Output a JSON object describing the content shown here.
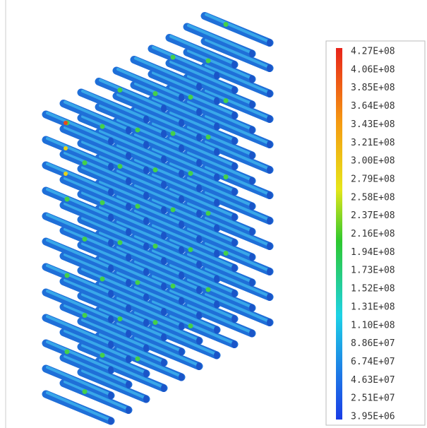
{
  "legend": {
    "labels": [
      "4.27E+08",
      "4.06E+08",
      "3.85E+08",
      "3.64E+08",
      "3.43E+08",
      "3.21E+08",
      "3.00E+08",
      "2.79E+08",
      "2.58E+08",
      "2.37E+08",
      "2.16E+08",
      "1.94E+08",
      "1.73E+08",
      "1.52E+08",
      "1.31E+08",
      "1.10E+08",
      "8.86E+07",
      "6.74E+07",
      "4.63E+07",
      "2.51E+07",
      "3.95E+06"
    ]
  }
}
